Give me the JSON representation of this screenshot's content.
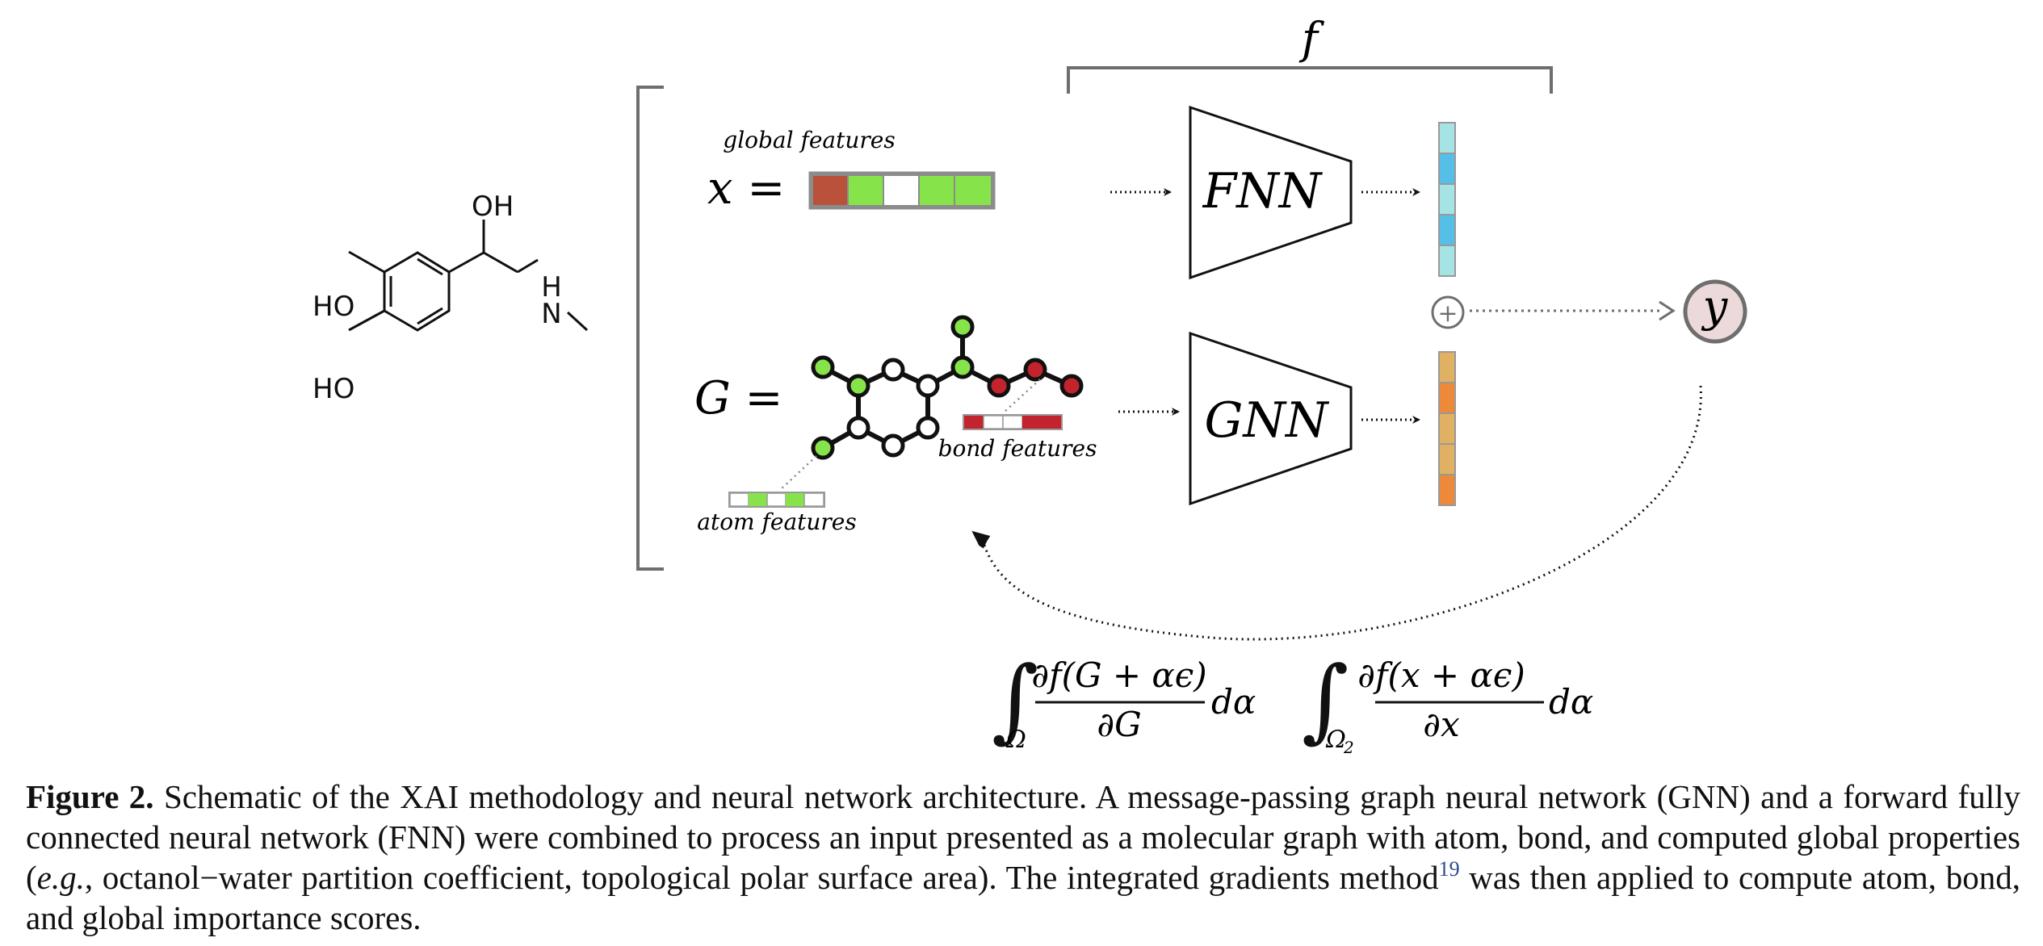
{
  "figure": {
    "molecule": {
      "labels": [
        "OH",
        "H",
        "N",
        "HO",
        "HO"
      ]
    },
    "labels": {
      "f": "f",
      "x_eq": "x =",
      "g_eq": "G =",
      "global_features": "global features",
      "bond_features": "bond features",
      "atom_features": "atom features",
      "fnn": "FNN",
      "gnn": "GNN",
      "plus": "+",
      "y": "y"
    },
    "formula1": {
      "sub": "Ω",
      "num": "∂f(G + αϵ)",
      "den": "∂G",
      "tail": "dα"
    },
    "formula2": {
      "sub": "Ω",
      "sub2": "2",
      "num": "∂f(x + αϵ)",
      "den": "∂x",
      "tail": "dα"
    },
    "colors": {
      "green": "#86e44a",
      "red": "#c2232c",
      "brown": "#b9513b",
      "light_blue": "#a6e3e4",
      "blue": "#55bfe8",
      "light_orange": "#e1b163",
      "orange": "#ec8a3a",
      "y_fill": "#ecd9da",
      "gray": "#6e6e6e"
    }
  },
  "caption": {
    "label": "Figure 2.",
    "text_a": " Schematic of the XAI methodology and neural network architecture. A message-passing graph neural network (GNN) and a forward fully connected neural network (FNN) were combined to process an input presented as a molecular graph with atom, bond, and computed global properties (",
    "eg": "e.g.",
    "text_b": ", octanol−water partition coefficient, topological polar surface area). The integrated gradients method",
    "ref": "19",
    "text_c": " was then applied to compute atom, bond, and global importance scores."
  }
}
